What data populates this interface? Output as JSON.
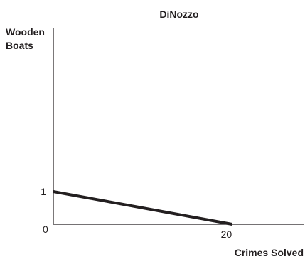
{
  "chart_data": {
    "type": "line",
    "title": "DiNozzo",
    "xlabel": "Crimes Solved",
    "ylabel": [
      "Wooden",
      "Boats"
    ],
    "xlim": [
      0,
      28
    ],
    "ylim": [
      0,
      6
    ],
    "origin_label": "0",
    "x_ticks": [
      {
        "value": 20,
        "label": "20"
      }
    ],
    "y_ticks": [
      {
        "value": 1,
        "label": "1"
      }
    ],
    "series": [
      {
        "points": [
          {
            "x": 0,
            "y": 1
          },
          {
            "x": 20,
            "y": 0
          }
        ]
      }
    ],
    "grid": false,
    "legend": "none",
    "colors": {
      "ink": "#231f20"
    }
  }
}
